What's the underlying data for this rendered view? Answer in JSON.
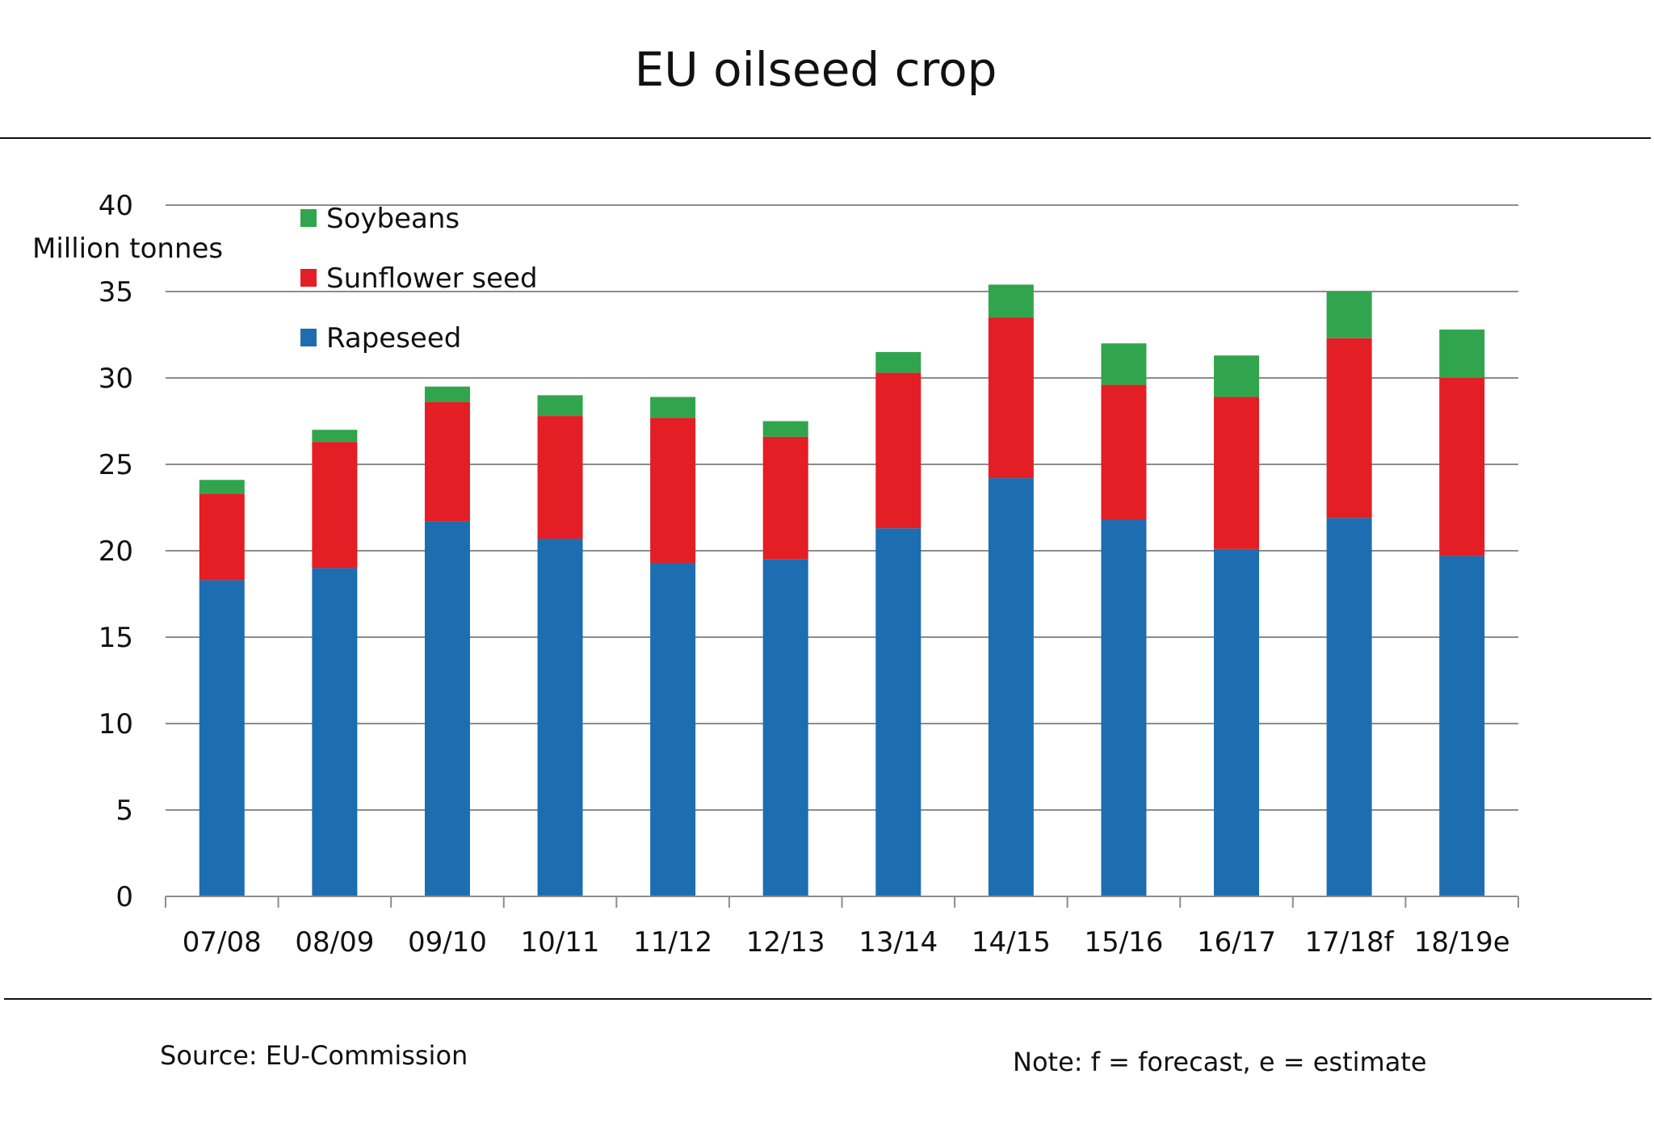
{
  "header": {
    "title": "EU oilseed crop"
  },
  "footer": {
    "source": "Source: EU-Commission",
    "note": "Note: f = forecast, e = estimate"
  },
  "chart_data": {
    "type": "bar",
    "stacked": true,
    "title": "EU oilseed crop",
    "ylabel": "Million tonnes",
    "xlabel": "",
    "ylim": [
      0,
      40
    ],
    "yticks": [
      0,
      5,
      10,
      15,
      20,
      25,
      30,
      35,
      40
    ],
    "grid": true,
    "legend_position": "top-left",
    "categories": [
      "07/08",
      "08/09",
      "09/10",
      "10/11",
      "11/12",
      "12/13",
      "13/14",
      "14/15",
      "15/16",
      "16/17",
      "17/18f",
      "18/19e"
    ],
    "series": [
      {
        "name": "Rapeseed",
        "color": "#1c6eb1",
        "values": [
          18.3,
          19.0,
          21.7,
          20.7,
          19.3,
          19.5,
          21.3,
          24.2,
          21.8,
          20.1,
          21.9,
          19.7
        ]
      },
      {
        "name": "Sunflower seed",
        "color": "#e31e24",
        "values": [
          5.0,
          7.3,
          6.9,
          7.1,
          8.4,
          7.1,
          9.0,
          9.3,
          7.8,
          8.8,
          10.4,
          10.3
        ]
      },
      {
        "name": "Soybeans",
        "color": "#31a54e",
        "values": [
          0.8,
          0.7,
          0.9,
          1.2,
          1.2,
          0.9,
          1.2,
          1.9,
          2.4,
          2.4,
          2.7,
          2.8
        ]
      }
    ],
    "legend_order": [
      "Soybeans",
      "Sunflower seed",
      "Rapeseed"
    ]
  }
}
